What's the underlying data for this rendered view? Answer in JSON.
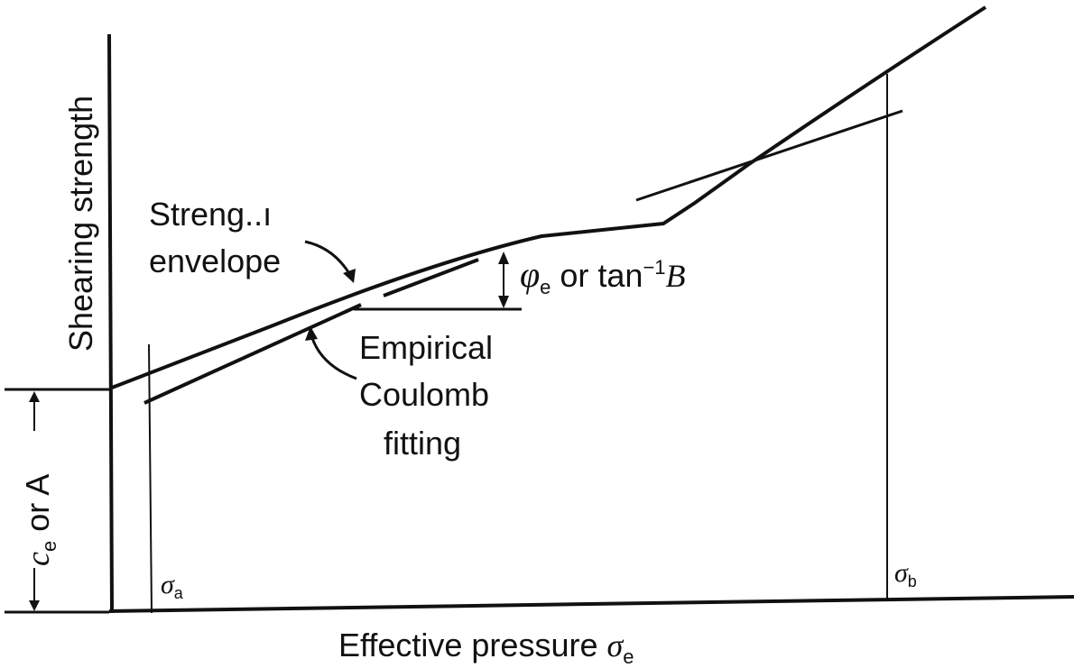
{
  "figure": {
    "y_axis_label": "Shearing strength",
    "x_axis_label_prefix": "Effective pressure ",
    "x_axis_label_symbol": "σ",
    "x_axis_label_subscript": "e",
    "intercept_label_symbol": "c",
    "intercept_label_subscript": "e",
    "intercept_label_text": " or A",
    "angle_label_symbol": "φ",
    "angle_label_subscript": "e",
    "angle_label_text": " or tan",
    "angle_label_exponent": "−1",
    "angle_label_var": "B",
    "envelope_label_line1": "Streng..ı",
    "envelope_label_line2": "envelope",
    "coulomb_label_line1": "Empirical",
    "coulomb_label_line2": "Coulomb",
    "coulomb_label_line3": "fitting",
    "sigma_a_symbol": "σ",
    "sigma_a_subscript": "a",
    "sigma_b_symbol": "σ",
    "sigma_b_subscript": "b"
  },
  "colors": {
    "ink": "#111111",
    "background": "#ffffff"
  }
}
